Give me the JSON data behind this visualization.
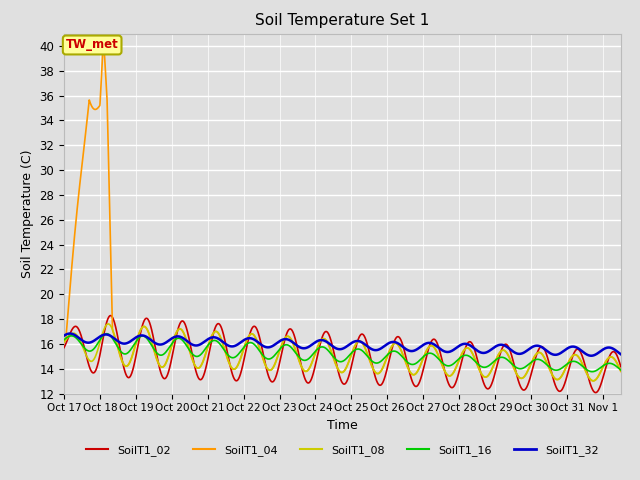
{
  "title": "Soil Temperature Set 1",
  "xlabel": "Time",
  "ylabel": "Soil Temperature (C)",
  "ylim": [
    12,
    41
  ],
  "yticks": [
    12,
    14,
    16,
    18,
    20,
    22,
    24,
    26,
    28,
    30,
    32,
    34,
    36,
    38,
    40
  ],
  "bg_color": "#e0e0e0",
  "annotation_text": "TW_met",
  "annotation_color": "#cc0000",
  "annotation_bg": "#ffff99",
  "annotation_border": "#aaaa00",
  "colors": {
    "SoilT1_02": "#cc0000",
    "SoilT1_04": "#ff9900",
    "SoilT1_08": "#cccc00",
    "SoilT1_16": "#00cc00",
    "SoilT1_32": "#0000cc"
  },
  "xtick_labels": [
    "Oct 17",
    "Oct 18",
    "Oct 19",
    "Oct 20",
    "Oct 21",
    "Oct 22",
    "Oct 23",
    "Oct 24",
    "Oct 25",
    "Oct 26",
    "Oct 27",
    "Oct 28",
    "Oct 29",
    "Oct 30",
    "Oct 31",
    "Nov 1"
  ],
  "xlim": [
    0,
    15.5
  ]
}
